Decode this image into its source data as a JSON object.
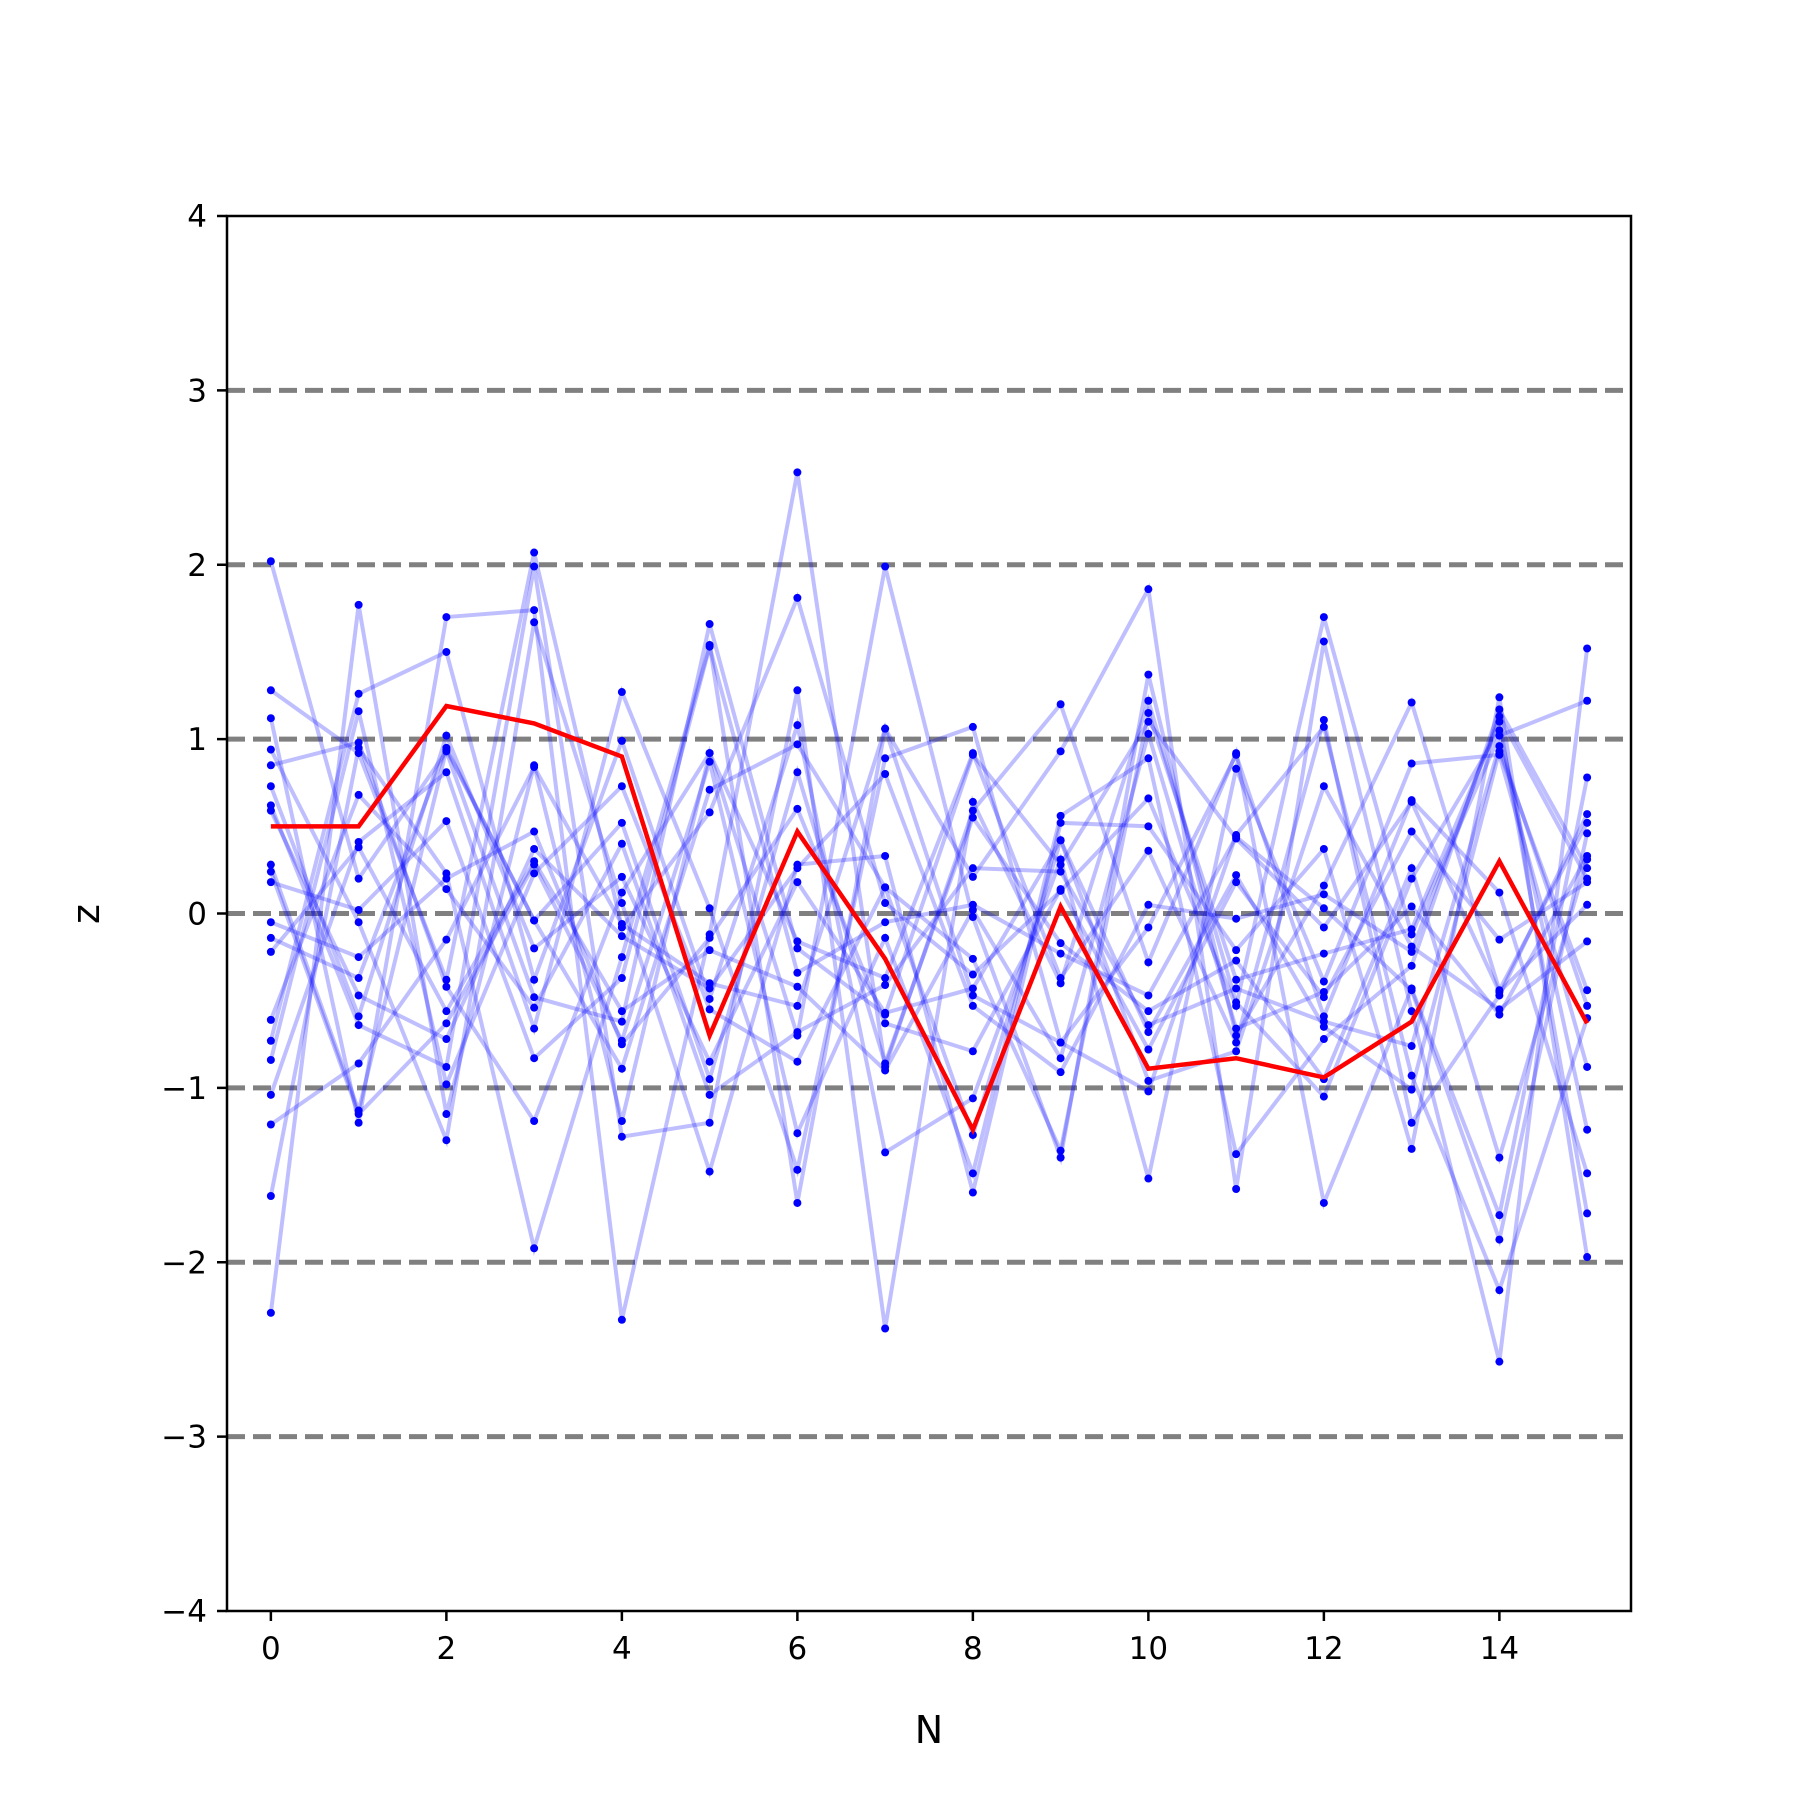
{
  "chart_data": {
    "type": "line",
    "title": "",
    "xlabel": "N",
    "ylabel": "z",
    "xlim": [
      -0.5,
      15.5
    ],
    "ylim": [
      -4,
      4
    ],
    "x_ticks": [
      0,
      2,
      4,
      6,
      8,
      10,
      12,
      14
    ],
    "y_ticks": [
      -4,
      -3,
      -2,
      -1,
      0,
      1,
      2,
      3,
      4
    ],
    "y_tick_labels": [
      "−4",
      "−3",
      "−2",
      "−1",
      "0",
      "1",
      "2",
      "3",
      "4"
    ],
    "reference_lines": [
      -3,
      -2,
      -1,
      0,
      1,
      2,
      3
    ],
    "grid": false,
    "legend": "none",
    "x": [
      0,
      1,
      2,
      3,
      4,
      5,
      6,
      7,
      8,
      9,
      10,
      11,
      12,
      13,
      14,
      15
    ],
    "highlight_series": {
      "values": [
        0.5,
        0.5,
        1.19,
        1.09,
        0.9,
        -0.7,
        0.47,
        -0.26,
        -1.24,
        0.04,
        -0.89,
        -0.83,
        -0.94,
        -0.62,
        0.3,
        -0.63
      ]
    },
    "background_series": [
      {
        "values": [
          2.02,
          0.2,
          0.93,
          -0.48,
          -0.62,
          1.66,
          -0.2,
          -0.58,
          0.91,
          0.28,
          1.1,
          0.43,
          -0.08,
          0.64,
          -0.45,
          0.05
        ]
      },
      {
        "values": [
          1.28,
          0.92,
          -0.38,
          2.07,
          -0.08,
          0.58,
          1.81,
          0.06,
          -0.35,
          0.13,
          0.66,
          -0.53,
          1.7,
          -0.12,
          1.02,
          1.22
        ]
      },
      {
        "values": [
          -2.29,
          1.77,
          -1.15,
          0.85,
          -1.19,
          0.92,
          -0.7,
          1.99,
          -0.02,
          -1.4,
          1.37,
          -0.7,
          0.16,
          1.21,
          -0.44,
          0.52
        ]
      },
      {
        "values": [
          1.12,
          -1.2,
          1.7,
          1.74,
          -2.33,
          -0.12,
          2.53,
          -0.88,
          0.59,
          1.2,
          -0.28,
          0.92,
          -1.66,
          -0.43,
          -1.73,
          0.78
        ]
      },
      {
        "values": [
          -1.62,
          0.95,
          0.23,
          -1.92,
          -0.25,
          1.54,
          -1.66,
          1.06,
          0.21,
          0.93,
          1.86,
          -1.58,
          1.56,
          -0.56,
          -2.57,
          1.52
        ]
      },
      {
        "values": [
          0.94,
          -0.05,
          -1.3,
          1.67,
          0.06,
          -1.48,
          0.28,
          0.33,
          -1.6,
          0.52,
          0.5,
          -0.21,
          0.37,
          -1.35,
          1.24,
          -1.97
        ]
      },
      {
        "values": [
          -1.04,
          0.41,
          0.81,
          -0.66,
          1.27,
          0.03,
          -1.47,
          0.89,
          1.07,
          -0.74,
          -1.02,
          0.45,
          1.07,
          -0.93,
          -2.16,
          -0.6
        ]
      },
      {
        "values": [
          0.62,
          -0.64,
          -0.88,
          1.99,
          -1.28,
          -1.2,
          1.28,
          -2.38,
          0.64,
          -0.4,
          1.22,
          -0.51,
          -1.05,
          0.2,
          1.05,
          -1.24
        ]
      },
      {
        "values": [
          -0.73,
          1.26,
          1.5,
          -0.38,
          0.99,
          -0.49,
          1.08,
          -1.37,
          -1.06,
          0.31,
          -1.52,
          0.83,
          -0.39,
          0.86,
          0.91,
          -0.88
        ]
      },
      {
        "values": [
          0.24,
          -1.15,
          -0.63,
          0.28,
          -0.73,
          0.87,
          -1.26,
          -0.14,
          -1.49,
          0.56,
          0.89,
          -1.38,
          -0.72,
          -0.3,
          1.17,
          0.26
        ]
      },
      {
        "values": [
          -0.14,
          -0.37,
          0.95,
          -0.04,
          0.52,
          -0.95,
          0.81,
          -0.86,
          0.55,
          -0.17,
          -0.56,
          -0.27,
          -0.95,
          0.26,
          -1.4,
          0.31
        ]
      },
      {
        "values": [
          -1.21,
          -0.86,
          -0.15,
          0.84,
          -0.06,
          -0.4,
          -0.53,
          1.06,
          -0.47,
          -0.74,
          -0.08,
          0.91,
          -0.59,
          0.65,
          0.12,
          -1.49
        ]
      },
      {
        "values": [
          0.85,
          0.98,
          -0.42,
          -1.19,
          0.12,
          0.92,
          -0.16,
          -0.37,
          0.92,
          -0.37,
          0.36,
          -0.74,
          1.11,
          -1.2,
          -0.47,
          0.57
        ]
      },
      {
        "values": [
          -0.05,
          -0.25,
          0.2,
          0.47,
          -0.75,
          -0.14,
          0.6,
          -0.63,
          -0.79,
          0.14,
          -0.78,
          0.18,
          -0.48,
          0.47,
          -0.15,
          0.18
        ]
      },
      {
        "values": [
          -0.84,
          1.16,
          -0.98,
          0.23,
          0.73,
          -0.55,
          -0.85,
          0.15,
          -0.26,
          -1.36,
          1.15,
          -0.38,
          -0.23,
          -0.09,
          1.1,
          -1.72
        ]
      },
      {
        "values": [
          0.18,
          0.02,
          0.53,
          -0.83,
          -0.37,
          1.53,
          -0.34,
          -0.05,
          0.05,
          -0.23,
          -0.47,
          0.44,
          0.03,
          -0.44,
          -1.87,
          0.46
        ]
      },
      {
        "values": [
          0.59,
          -0.47,
          -0.72,
          0.37,
          -0.13,
          -0.43,
          0.26,
          0.8,
          -0.53,
          -0.91,
          0.05,
          -0.03,
          0.11,
          -0.22,
          1.13,
          0.2
        ]
      },
      {
        "values": [
          -0.61,
          0.68,
          0.14,
          -0.54,
          0.4,
          -1.04,
          -0.68,
          -0.41,
          0.26,
          0.24,
          -0.64,
          -0.43,
          -0.62,
          -0.76,
          0.96,
          -0.53
        ]
      },
      {
        "values": [
          0.28,
          -1.13,
          0.94,
          -0.04,
          -0.89,
          0.71,
          0.97,
          0.15,
          -1.27,
          0.42,
          -0.96,
          -0.79,
          0.73,
          -0.19,
          -0.55,
          -0.16
        ]
      },
      {
        "values": [
          -0.22,
          0.38,
          -0.56,
          0.3,
          -0.56,
          -0.21,
          -0.42,
          -0.9,
          0.02,
          -0.83,
          1.03,
          -0.66,
          -0.45,
          0.04,
          -0.58,
          0.33
        ]
      },
      {
        "values": [
          0.73,
          -0.59,
          1.02,
          -0.2,
          0.21,
          -0.85,
          0.18,
          -0.57,
          -0.43,
          0.42,
          -0.68,
          0.22,
          -0.65,
          -1.01,
          0.93,
          -0.44
        ]
      }
    ]
  }
}
